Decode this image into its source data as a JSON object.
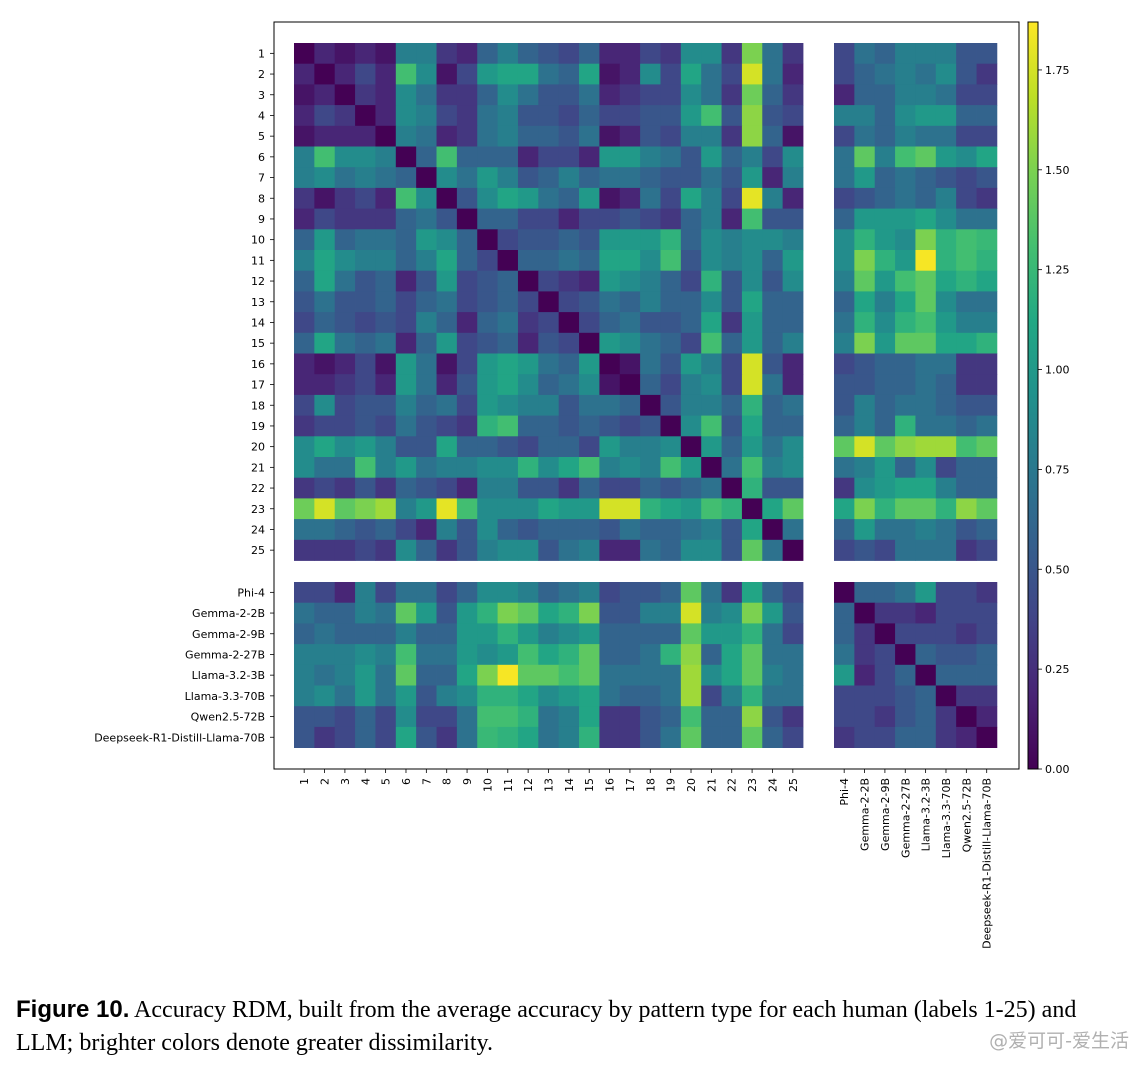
{
  "chart_data": {
    "type": "heatmap",
    "title": "",
    "row_labels": [
      "1",
      "2",
      "3",
      "4",
      "5",
      "6",
      "7",
      "8",
      "9",
      "10",
      "11",
      "12",
      "13",
      "14",
      "15",
      "16",
      "17",
      "18",
      "19",
      "20",
      "21",
      "22",
      "23",
      "24",
      "25",
      "Phi-4",
      "Gemma-2-2B",
      "Gemma-2-9B",
      "Gemma-2-27B",
      "Llama-3.2-3B",
      "Llama-3.3-70B",
      "Qwen2.5-72B",
      "Deepseek-R1-Distill-Llama-70B"
    ],
    "col_labels": [
      "1",
      "2",
      "3",
      "4",
      "5",
      "6",
      "7",
      "8",
      "9",
      "10",
      "11",
      "12",
      "13",
      "14",
      "15",
      "16",
      "17",
      "18",
      "19",
      "20",
      "21",
      "22",
      "23",
      "24",
      "25",
      "Phi-4",
      "Gemma-2-2B",
      "Gemma-2-9B",
      "Gemma-2-27B",
      "Llama-3.2-3B",
      "Llama-3.3-70B",
      "Qwen2.5-72B",
      "Deepseek-R1-Distill-Llama-70B"
    ],
    "groups": {
      "human_count": 25,
      "llm_count": 8
    },
    "colorbar": {
      "colormap": "viridis",
      "vmin": 0.0,
      "vmax": 1.87,
      "ticks": [
        0.0,
        0.25,
        0.5,
        0.75,
        1.0,
        1.25,
        1.5,
        1.75
      ],
      "tick_labels": [
        "0.00",
        "0.25",
        "0.50",
        "0.75",
        "1.00",
        "1.25",
        "1.50",
        "1.75"
      ]
    },
    "values": [
      [
        0.0,
        0.2,
        0.1,
        0.2,
        0.1,
        0.8,
        0.8,
        0.3,
        0.2,
        0.6,
        0.8,
        0.6,
        0.5,
        0.4,
        0.6,
        0.2,
        0.2,
        0.4,
        0.3,
        0.9,
        0.9,
        0.3,
        1.5,
        0.7,
        0.3,
        0.4,
        0.7,
        0.6,
        0.8,
        0.8,
        0.8,
        0.5,
        0.5
      ],
      [
        0.2,
        0.0,
        0.2,
        0.4,
        0.2,
        1.3,
        0.9,
        0.1,
        0.4,
        1.0,
        1.1,
        1.1,
        0.7,
        0.6,
        1.1,
        0.1,
        0.2,
        0.9,
        0.4,
        1.1,
        0.7,
        0.4,
        1.75,
        0.7,
        0.2,
        0.4,
        0.6,
        0.7,
        0.8,
        0.7,
        0.9,
        0.5,
        0.3
      ],
      [
        0.1,
        0.2,
        0.0,
        0.3,
        0.2,
        0.9,
        0.7,
        0.3,
        0.3,
        0.6,
        0.9,
        0.7,
        0.5,
        0.5,
        0.7,
        0.2,
        0.3,
        0.4,
        0.4,
        0.9,
        0.7,
        0.3,
        1.45,
        0.6,
        0.3,
        0.2,
        0.6,
        0.6,
        0.8,
        0.8,
        0.7,
        0.4,
        0.4
      ],
      [
        0.2,
        0.4,
        0.3,
        0.0,
        0.2,
        0.9,
        0.8,
        0.4,
        0.3,
        0.7,
        0.8,
        0.5,
        0.5,
        0.4,
        0.6,
        0.4,
        0.4,
        0.5,
        0.5,
        1.0,
        1.3,
        0.5,
        1.55,
        0.5,
        0.4,
        0.8,
        0.8,
        0.6,
        0.9,
        1.0,
        1.0,
        0.6,
        0.6
      ],
      [
        0.1,
        0.2,
        0.2,
        0.2,
        0.0,
        0.8,
        0.7,
        0.2,
        0.3,
        0.7,
        0.8,
        0.6,
        0.6,
        0.5,
        0.7,
        0.1,
        0.2,
        0.5,
        0.4,
        0.8,
        0.8,
        0.3,
        1.55,
        0.6,
        0.1,
        0.4,
        0.7,
        0.6,
        0.8,
        0.7,
        0.7,
        0.4,
        0.4
      ],
      [
        0.8,
        1.3,
        0.9,
        0.9,
        0.8,
        0.0,
        0.6,
        1.3,
        0.6,
        0.6,
        0.6,
        0.2,
        0.4,
        0.4,
        0.2,
        1.0,
        1.0,
        0.8,
        0.7,
        0.5,
        1.0,
        0.6,
        0.8,
        0.4,
        0.9,
        0.7,
        1.4,
        0.8,
        1.3,
        1.4,
        1.0,
        0.9,
        1.1
      ],
      [
        0.8,
        0.9,
        0.7,
        0.8,
        0.7,
        0.6,
        0.0,
        0.9,
        0.7,
        1.0,
        0.8,
        0.5,
        0.6,
        0.8,
        0.6,
        0.7,
        0.7,
        0.6,
        0.5,
        0.5,
        0.7,
        0.5,
        1.0,
        0.2,
        0.8,
        0.7,
        1.0,
        0.6,
        0.7,
        0.6,
        0.5,
        0.4,
        0.5
      ],
      [
        0.3,
        0.1,
        0.3,
        0.4,
        0.2,
        1.3,
        0.9,
        0.0,
        0.5,
        0.9,
        1.1,
        1.0,
        0.7,
        0.6,
        1.0,
        0.1,
        0.2,
        0.7,
        0.4,
        1.1,
        0.8,
        0.4,
        1.8,
        0.8,
        0.2,
        0.4,
        0.5,
        0.6,
        0.7,
        0.6,
        0.8,
        0.4,
        0.3
      ],
      [
        0.2,
        0.4,
        0.3,
        0.3,
        0.3,
        0.6,
        0.7,
        0.5,
        0.0,
        0.6,
        0.6,
        0.4,
        0.4,
        0.2,
        0.4,
        0.4,
        0.5,
        0.4,
        0.3,
        0.6,
        0.8,
        0.2,
        1.3,
        0.5,
        0.5,
        0.6,
        1.0,
        1.0,
        1.0,
        1.1,
        0.9,
        0.7,
        0.7
      ],
      [
        0.6,
        1.0,
        0.6,
        0.7,
        0.7,
        0.6,
        1.0,
        0.9,
        0.6,
        0.0,
        0.4,
        0.5,
        0.5,
        0.6,
        0.5,
        1.0,
        1.0,
        1.0,
        1.2,
        0.6,
        0.9,
        0.8,
        0.9,
        0.9,
        0.8,
        0.9,
        1.2,
        1.0,
        0.9,
        1.5,
        1.2,
        1.3,
        1.25
      ],
      [
        0.8,
        1.1,
        0.9,
        0.8,
        0.8,
        0.6,
        0.8,
        1.1,
        0.6,
        0.4,
        0.0,
        0.6,
        0.6,
        0.7,
        0.6,
        1.1,
        1.1,
        0.9,
        1.3,
        0.5,
        0.9,
        0.8,
        0.9,
        0.6,
        1.0,
        0.9,
        1.5,
        1.2,
        1.0,
        1.85,
        1.2,
        1.3,
        1.2
      ],
      [
        0.6,
        1.1,
        0.7,
        0.5,
        0.6,
        0.2,
        0.5,
        1.0,
        0.4,
        0.5,
        0.6,
        0.0,
        0.4,
        0.3,
        0.2,
        1.0,
        0.9,
        0.8,
        0.6,
        0.4,
        1.2,
        0.5,
        0.9,
        0.5,
        0.9,
        0.8,
        1.4,
        1.0,
        1.3,
        1.4,
        1.1,
        1.2,
        1.1
      ],
      [
        0.5,
        0.7,
        0.5,
        0.5,
        0.6,
        0.4,
        0.6,
        0.7,
        0.4,
        0.5,
        0.6,
        0.4,
        0.0,
        0.4,
        0.5,
        0.7,
        0.6,
        0.8,
        0.6,
        0.6,
        0.9,
        0.5,
        1.1,
        0.6,
        0.6,
        0.6,
        1.1,
        0.8,
        1.1,
        1.4,
        0.9,
        0.7,
        0.7
      ],
      [
        0.4,
        0.6,
        0.5,
        0.4,
        0.5,
        0.4,
        0.8,
        0.6,
        0.2,
        0.6,
        0.7,
        0.3,
        0.4,
        0.0,
        0.4,
        0.6,
        0.7,
        0.5,
        0.5,
        0.6,
        1.1,
        0.3,
        1.0,
        0.6,
        0.6,
        0.7,
        1.2,
        0.9,
        1.2,
        1.3,
        1.0,
        0.8,
        0.8
      ],
      [
        0.6,
        1.1,
        0.7,
        0.6,
        0.7,
        0.2,
        0.6,
        1.0,
        0.4,
        0.5,
        0.6,
        0.2,
        0.5,
        0.4,
        0.0,
        1.0,
        0.9,
        0.7,
        0.6,
        0.4,
        1.3,
        0.6,
        1.0,
        0.6,
        0.8,
        0.8,
        1.5,
        1.0,
        1.4,
        1.4,
        1.1,
        1.1,
        1.2
      ],
      [
        0.2,
        0.1,
        0.2,
        0.4,
        0.1,
        1.0,
        0.7,
        0.1,
        0.4,
        1.0,
        1.1,
        1.0,
        0.7,
        0.6,
        1.0,
        0.0,
        0.1,
        0.7,
        0.5,
        1.0,
        0.8,
        0.4,
        1.75,
        0.5,
        0.2,
        0.4,
        0.5,
        0.6,
        0.6,
        0.7,
        0.7,
        0.3,
        0.3
      ],
      [
        0.2,
        0.2,
        0.3,
        0.4,
        0.2,
        1.0,
        0.7,
        0.2,
        0.5,
        1.0,
        1.1,
        0.9,
        0.6,
        0.7,
        0.9,
        0.1,
        0.0,
        0.6,
        0.4,
        0.8,
        0.9,
        0.4,
        1.75,
        0.7,
        0.2,
        0.5,
        0.5,
        0.6,
        0.6,
        0.7,
        0.6,
        0.3,
        0.3
      ],
      [
        0.4,
        0.9,
        0.4,
        0.5,
        0.5,
        0.8,
        0.6,
        0.7,
        0.4,
        1.0,
        0.9,
        0.8,
        0.8,
        0.5,
        0.7,
        0.7,
        0.6,
        0.0,
        0.5,
        0.8,
        0.8,
        0.6,
        1.2,
        0.6,
        0.7,
        0.5,
        0.8,
        0.6,
        0.7,
        0.7,
        0.6,
        0.5,
        0.5
      ],
      [
        0.3,
        0.4,
        0.4,
        0.5,
        0.4,
        0.7,
        0.5,
        0.4,
        0.3,
        1.2,
        1.3,
        0.6,
        0.6,
        0.5,
        0.6,
        0.5,
        0.4,
        0.5,
        0.0,
        0.9,
        1.3,
        0.5,
        1.1,
        0.6,
        0.6,
        0.6,
        0.8,
        0.6,
        1.2,
        0.7,
        0.7,
        0.6,
        0.7
      ],
      [
        0.9,
        1.1,
        0.9,
        1.0,
        0.8,
        0.5,
        0.5,
        1.1,
        0.6,
        0.6,
        0.5,
        0.4,
        0.6,
        0.6,
        0.4,
        1.0,
        0.8,
        0.8,
        0.9,
        0.0,
        1.0,
        0.6,
        1.0,
        0.7,
        0.9,
        1.4,
        1.75,
        1.4,
        1.55,
        1.6,
        1.6,
        1.3,
        1.4
      ],
      [
        0.9,
        0.7,
        0.7,
        1.3,
        0.8,
        1.0,
        0.7,
        0.8,
        0.8,
        0.9,
        0.9,
        1.2,
        0.9,
        1.1,
        1.3,
        0.8,
        0.9,
        0.8,
        1.3,
        1.0,
        0.0,
        0.7,
        1.3,
        0.8,
        0.9,
        0.7,
        0.8,
        1.0,
        0.6,
        0.9,
        0.4,
        0.6,
        0.6
      ],
      [
        0.3,
        0.4,
        0.3,
        0.5,
        0.3,
        0.6,
        0.5,
        0.4,
        0.2,
        0.8,
        0.8,
        0.5,
        0.5,
        0.3,
        0.6,
        0.4,
        0.4,
        0.6,
        0.5,
        0.6,
        0.7,
        0.0,
        1.2,
        0.5,
        0.5,
        0.3,
        0.9,
        1.0,
        1.1,
        1.1,
        0.8,
        0.6,
        0.6
      ],
      [
        1.45,
        1.75,
        1.4,
        1.5,
        1.6,
        0.8,
        1.0,
        1.8,
        1.3,
        0.9,
        0.9,
        0.9,
        1.1,
        1.0,
        1.0,
        1.75,
        1.75,
        1.2,
        1.1,
        1.0,
        1.3,
        1.2,
        0.0,
        1.1,
        1.4,
        1.1,
        1.5,
        1.2,
        1.4,
        1.4,
        1.2,
        1.55,
        1.4
      ],
      [
        0.7,
        0.7,
        0.6,
        0.5,
        0.6,
        0.4,
        0.2,
        0.8,
        0.5,
        0.9,
        0.6,
        0.5,
        0.6,
        0.6,
        0.6,
        0.5,
        0.7,
        0.6,
        0.6,
        0.7,
        0.8,
        0.5,
        1.1,
        0.0,
        0.7,
        0.6,
        1.0,
        0.7,
        0.7,
        0.8,
        0.7,
        0.5,
        0.6
      ],
      [
        0.3,
        0.3,
        0.3,
        0.4,
        0.3,
        0.9,
        0.6,
        0.3,
        0.5,
        0.8,
        0.9,
        0.9,
        0.5,
        0.7,
        0.8,
        0.2,
        0.2,
        0.7,
        0.6,
        0.9,
        0.9,
        0.5,
        1.4,
        0.7,
        0.0,
        0.4,
        0.5,
        0.4,
        0.7,
        0.7,
        0.7,
        0.3,
        0.4
      ],
      [
        0.4,
        0.4,
        0.2,
        0.8,
        0.4,
        0.7,
        0.7,
        0.4,
        0.6,
        0.9,
        0.9,
        0.8,
        0.6,
        0.7,
        0.8,
        0.4,
        0.5,
        0.5,
        0.6,
        1.4,
        0.7,
        0.3,
        1.1,
        0.6,
        0.4,
        0.0,
        0.6,
        0.6,
        0.7,
        1.0,
        0.4,
        0.4,
        0.3
      ],
      [
        0.7,
        0.6,
        0.6,
        0.8,
        0.7,
        1.4,
        1.0,
        0.5,
        1.0,
        1.2,
        1.5,
        1.4,
        1.1,
        1.2,
        1.5,
        0.5,
        0.5,
        0.8,
        0.8,
        1.75,
        0.8,
        0.9,
        1.5,
        1.0,
        0.5,
        0.6,
        0.0,
        0.3,
        0.3,
        0.2,
        0.4,
        0.4,
        0.4
      ],
      [
        0.6,
        0.7,
        0.6,
        0.6,
        0.6,
        0.8,
        0.6,
        0.6,
        1.0,
        1.0,
        1.2,
        1.0,
        0.8,
        0.9,
        1.0,
        0.6,
        0.6,
        0.6,
        0.6,
        1.4,
        1.0,
        1.0,
        1.2,
        0.7,
        0.4,
        0.6,
        0.3,
        0.0,
        0.4,
        0.4,
        0.4,
        0.3,
        0.4
      ],
      [
        0.8,
        0.8,
        0.8,
        0.9,
        0.8,
        1.3,
        0.7,
        0.7,
        1.0,
        0.9,
        1.0,
        1.3,
        1.1,
        1.2,
        1.4,
        0.6,
        0.6,
        0.7,
        1.2,
        1.55,
        0.6,
        1.1,
        1.4,
        0.7,
        0.7,
        0.7,
        0.3,
        0.4,
        0.0,
        0.6,
        0.5,
        0.5,
        0.6
      ],
      [
        0.8,
        0.7,
        0.8,
        1.0,
        0.7,
        1.4,
        0.6,
        0.6,
        1.1,
        1.5,
        1.85,
        1.4,
        1.4,
        1.3,
        1.4,
        0.7,
        0.7,
        0.7,
        0.7,
        1.6,
        0.9,
        1.1,
        1.4,
        0.8,
        0.7,
        1.0,
        0.2,
        0.4,
        0.6,
        0.0,
        0.6,
        0.6,
        0.6
      ],
      [
        0.8,
        0.9,
        0.7,
        1.0,
        0.7,
        1.0,
        0.5,
        0.8,
        0.9,
        1.2,
        1.2,
        1.1,
        0.9,
        1.0,
        1.1,
        0.7,
        0.6,
        0.6,
        0.7,
        1.6,
        0.4,
        0.8,
        1.2,
        0.7,
        0.7,
        0.4,
        0.4,
        0.4,
        0.5,
        0.6,
        0.0,
        0.3,
        0.3
      ],
      [
        0.5,
        0.5,
        0.4,
        0.6,
        0.4,
        0.9,
        0.4,
        0.4,
        0.7,
        1.3,
        1.3,
        1.2,
        0.7,
        0.8,
        1.1,
        0.3,
        0.3,
        0.5,
        0.6,
        1.3,
        0.6,
        0.6,
        1.55,
        0.5,
        0.3,
        0.4,
        0.4,
        0.3,
        0.5,
        0.6,
        0.3,
        0.0,
        0.2
      ],
      [
        0.5,
        0.3,
        0.4,
        0.6,
        0.4,
        1.1,
        0.5,
        0.3,
        0.7,
        1.25,
        1.2,
        1.1,
        0.7,
        0.8,
        1.2,
        0.3,
        0.3,
        0.5,
        0.7,
        1.4,
        0.6,
        0.6,
        1.4,
        0.6,
        0.4,
        0.3,
        0.4,
        0.4,
        0.6,
        0.6,
        0.3,
        0.2,
        0.0
      ]
    ]
  },
  "caption": {
    "label": "Figure 10.",
    "text": " Accuracy RDM, built from the average accuracy by pattern type for each human (labels 1-25) and LLM; brighter colors denote greater dissimilarity."
  },
  "watermark": "@爱可可-爱生活"
}
